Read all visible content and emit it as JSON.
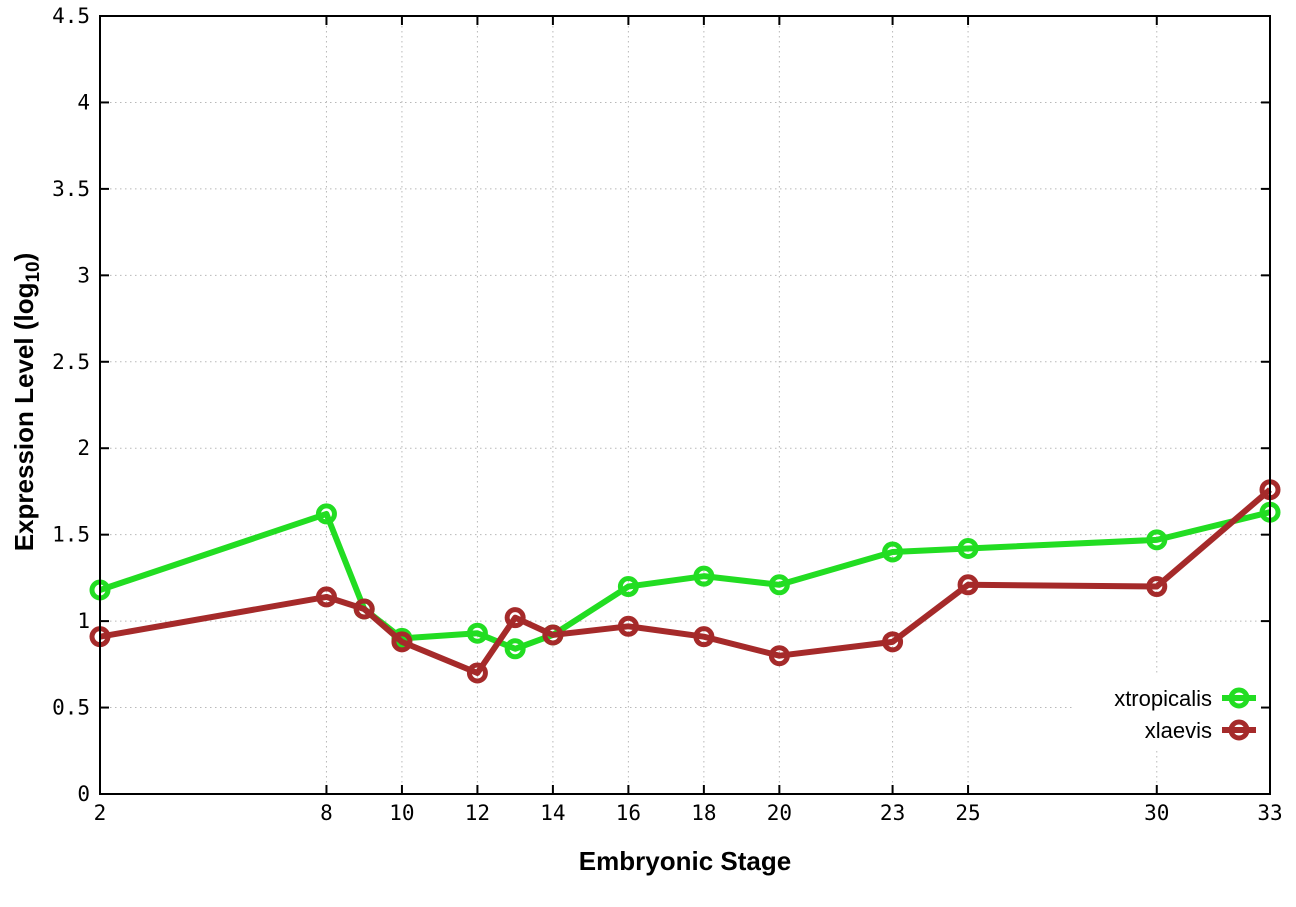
{
  "chart_data": {
    "type": "line",
    "x": [
      2,
      8,
      9,
      10,
      12,
      13,
      14,
      16,
      18,
      20,
      23,
      25,
      30,
      33
    ],
    "series": [
      {
        "name": "xtropicalis",
        "color": "#22dd22",
        "values": [
          1.18,
          1.62,
          1.07,
          0.9,
          0.93,
          0.84,
          0.92,
          1.2,
          1.26,
          1.21,
          1.4,
          1.42,
          1.47,
          1.63
        ]
      },
      {
        "name": "xlaevis",
        "color": "#a52a2a",
        "values": [
          0.91,
          1.14,
          1.07,
          0.88,
          0.7,
          1.02,
          0.92,
          0.97,
          0.91,
          0.8,
          0.88,
          1.21,
          1.2,
          1.76
        ]
      }
    ],
    "title": "",
    "xlabel": "Embryonic Stage",
    "ylabel": "Expression Level (log10)",
    "ylabel_parts": {
      "main": "Expression Level (log",
      "sub": "10",
      "suffix": ")"
    },
    "xlim": [
      2,
      33
    ],
    "ylim": [
      0,
      4.5
    ],
    "xticks": {
      "values": [
        2,
        8,
        10,
        12,
        14,
        16,
        18,
        20,
        23,
        25,
        30,
        33
      ],
      "labels": [
        "2",
        "8",
        "10",
        "12",
        "14",
        "16",
        "18",
        "20",
        "23",
        "25",
        "30",
        "33"
      ]
    },
    "yticks": {
      "values": [
        0,
        0.5,
        1,
        1.5,
        2,
        2.5,
        3,
        3.5,
        4,
        4.5
      ],
      "labels": [
        "0",
        "0.5",
        "1",
        "1.5",
        "2",
        "2.5",
        "3",
        "3.5",
        "4",
        "4.5"
      ]
    },
    "grid": true,
    "legend_position": "bottom-right",
    "colors": {
      "border": "#000000",
      "grid": "#b8b8b8",
      "background": "#ffffff",
      "text": "#000000"
    }
  }
}
